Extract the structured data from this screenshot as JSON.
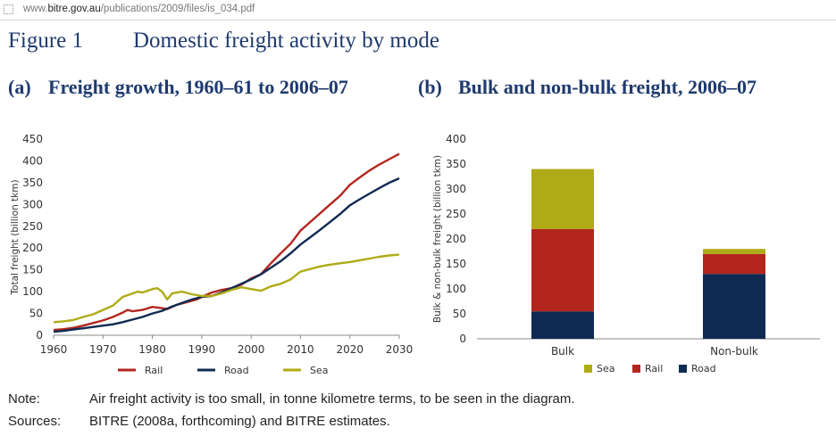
{
  "browser": {
    "url_prefix": "www.",
    "url_domain": "bitre.gov.au",
    "url_path": "/publications/2009/files/is_034.pdf"
  },
  "figure": {
    "number": "Figure 1",
    "title": "Domestic freight activity by mode"
  },
  "panel_a": {
    "label": "(a)",
    "title": "Freight growth, 1960–61 to 2006–07"
  },
  "panel_b": {
    "label": "(b)",
    "title": "Bulk and non-bulk freight, 2006–07"
  },
  "chart_data": [
    {
      "type": "line",
      "ylabel": "Total freight (billion tkm)",
      "xlabel": "",
      "ylim": [
        0,
        450
      ],
      "xlim": [
        1960,
        2030
      ],
      "yticks": [
        0,
        50,
        100,
        150,
        200,
        250,
        300,
        350,
        400,
        450
      ],
      "xticks": [
        1960,
        1970,
        1980,
        1990,
        2000,
        2010,
        2020,
        2030
      ],
      "legend_position": "bottom",
      "grid": false,
      "series": [
        {
          "name": "Rail",
          "color": "#b3261e",
          "points": [
            [
              1960,
              12
            ],
            [
              1962,
              14
            ],
            [
              1964,
              17
            ],
            [
              1966,
              22
            ],
            [
              1968,
              28
            ],
            [
              1970,
              34
            ],
            [
              1972,
              42
            ],
            [
              1974,
              52
            ],
            [
              1975,
              58
            ],
            [
              1976,
              55
            ],
            [
              1978,
              58
            ],
            [
              1980,
              65
            ],
            [
              1982,
              62
            ],
            [
              1983,
              60
            ],
            [
              1985,
              70
            ],
            [
              1987,
              76
            ],
            [
              1989,
              82
            ],
            [
              1990,
              88
            ],
            [
              1992,
              98
            ],
            [
              1994,
              104
            ],
            [
              1996,
              108
            ],
            [
              1998,
              116
            ],
            [
              2000,
              130
            ],
            [
              2002,
              140
            ],
            [
              2004,
              165
            ],
            [
              2006,
              188
            ],
            [
              2008,
              210
            ],
            [
              2010,
              240
            ],
            [
              2012,
              260
            ],
            [
              2014,
              280
            ],
            [
              2016,
              300
            ],
            [
              2018,
              320
            ],
            [
              2020,
              345
            ],
            [
              2022,
              362
            ],
            [
              2024,
              378
            ],
            [
              2026,
              392
            ],
            [
              2028,
              404
            ],
            [
              2030,
              416
            ]
          ]
        },
        {
          "name": "Road",
          "color": "#0f2a52",
          "points": [
            [
              1960,
              8
            ],
            [
              1962,
              10
            ],
            [
              1964,
              13
            ],
            [
              1966,
              16
            ],
            [
              1968,
              19
            ],
            [
              1970,
              22
            ],
            [
              1972,
              25
            ],
            [
              1974,
              30
            ],
            [
              1976,
              36
            ],
            [
              1978,
              42
            ],
            [
              1980,
              50
            ],
            [
              1982,
              56
            ],
            [
              1984,
              66
            ],
            [
              1986,
              74
            ],
            [
              1988,
              82
            ],
            [
              1990,
              88
            ],
            [
              1992,
              90
            ],
            [
              1994,
              98
            ],
            [
              1996,
              108
            ],
            [
              1998,
              118
            ],
            [
              2000,
              128
            ],
            [
              2002,
              140
            ],
            [
              2004,
              155
            ],
            [
              2006,
              170
            ],
            [
              2008,
              188
            ],
            [
              2010,
              208
            ],
            [
              2012,
              225
            ],
            [
              2014,
              242
            ],
            [
              2016,
              260
            ],
            [
              2018,
              278
            ],
            [
              2020,
              298
            ],
            [
              2022,
              312
            ],
            [
              2024,
              325
            ],
            [
              2026,
              338
            ],
            [
              2028,
              350
            ],
            [
              2030,
              360
            ]
          ]
        },
        {
          "name": "Sea",
          "color": "#afab16",
          "points": [
            [
              1960,
              30
            ],
            [
              1962,
              32
            ],
            [
              1964,
              35
            ],
            [
              1966,
              42
            ],
            [
              1968,
              48
            ],
            [
              1970,
              58
            ],
            [
              1972,
              68
            ],
            [
              1974,
              88
            ],
            [
              1976,
              96
            ],
            [
              1977,
              100
            ],
            [
              1978,
              98
            ],
            [
              1980,
              106
            ],
            [
              1981,
              108
            ],
            [
              1982,
              100
            ],
            [
              1983,
              82
            ],
            [
              1984,
              96
            ],
            [
              1986,
              100
            ],
            [
              1988,
              94
            ],
            [
              1990,
              90
            ],
            [
              1992,
              90
            ],
            [
              1994,
              96
            ],
            [
              1996,
              104
            ],
            [
              1998,
              110
            ],
            [
              2000,
              106
            ],
            [
              2002,
              102
            ],
            [
              2004,
              112
            ],
            [
              2006,
              118
            ],
            [
              2008,
              128
            ],
            [
              2010,
              146
            ],
            [
              2012,
              152
            ],
            [
              2014,
              158
            ],
            [
              2016,
              162
            ],
            [
              2018,
              165
            ],
            [
              2020,
              168
            ],
            [
              2022,
              172
            ],
            [
              2024,
              176
            ],
            [
              2026,
              180
            ],
            [
              2028,
              183
            ],
            [
              2030,
              185
            ]
          ]
        }
      ]
    },
    {
      "type": "bar",
      "stacked": true,
      "ylabel": "Bulk & non-bulk freight (billion tkm)",
      "xlabel": "",
      "ylim": [
        0,
        400
      ],
      "yticks": [
        0,
        50,
        100,
        150,
        200,
        250,
        300,
        350,
        400
      ],
      "categories": [
        "Bulk",
        "Non-bulk"
      ],
      "legend_position": "bottom",
      "series": [
        {
          "name": "Road",
          "color": "#0f2a52",
          "values": [
            55,
            130
          ]
        },
        {
          "name": "Rail",
          "color": "#b3261e",
          "values": [
            165,
            40
          ]
        },
        {
          "name": "Sea",
          "color": "#afab16",
          "values": [
            120,
            10
          ]
        }
      ],
      "legend_order": [
        "Sea",
        "Rail",
        "Road"
      ]
    }
  ],
  "notes": {
    "note_key": "Note:",
    "note_text": "Air freight activity is too small, in tonne kilometre terms, to be seen in the diagram.",
    "sources_key": "Sources:",
    "sources_text": "BITRE (2008a, forthcoming) and BITRE estimates."
  }
}
